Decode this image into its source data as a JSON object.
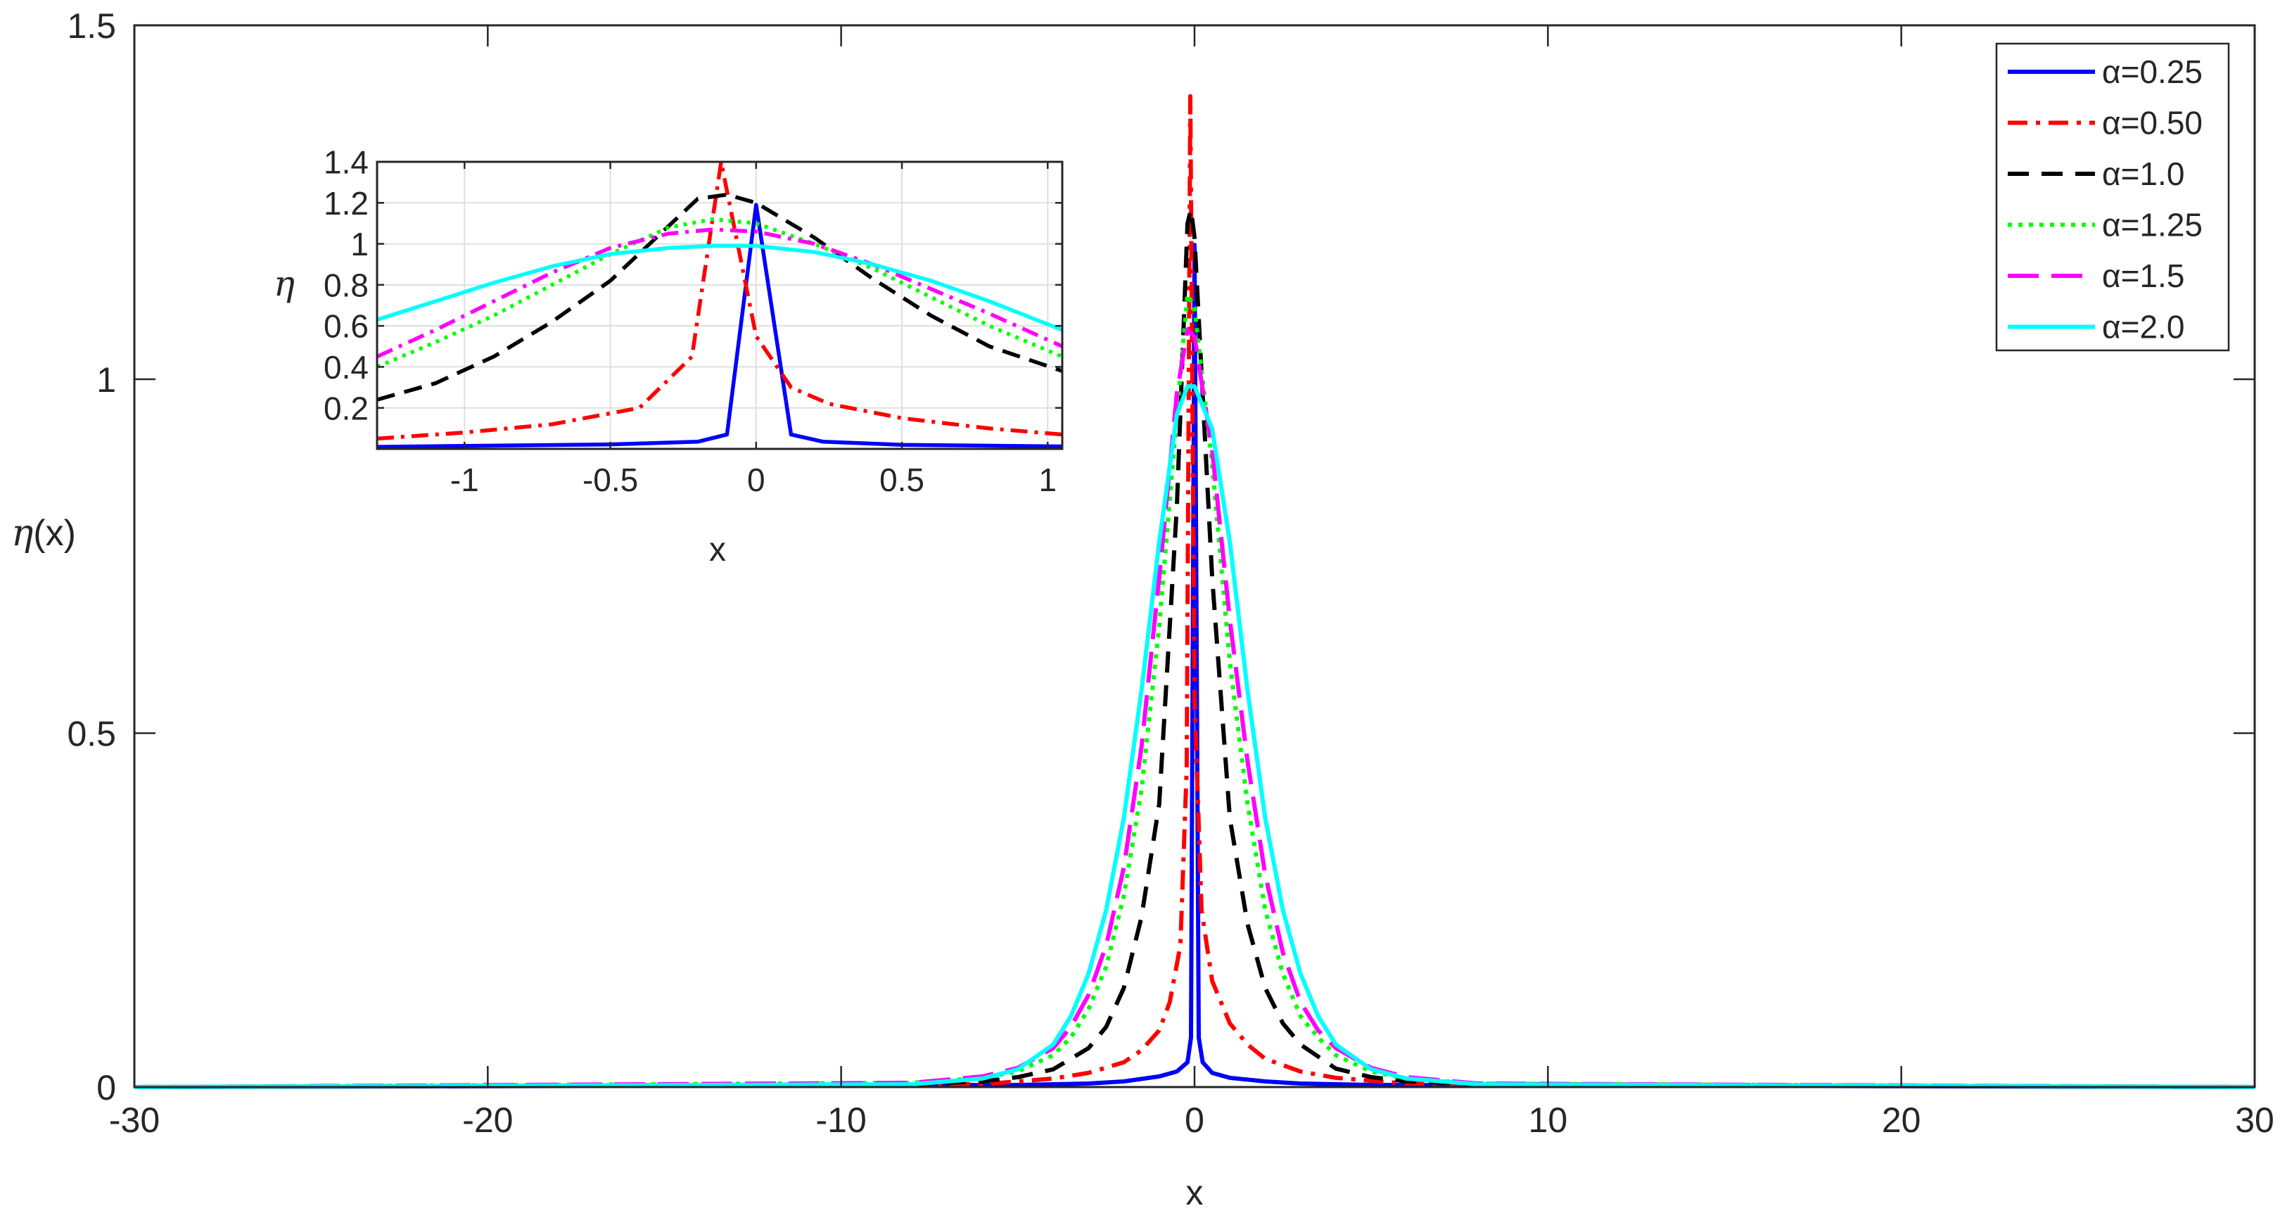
{
  "chart_data": [
    {
      "type": "line",
      "xlabel": "x",
      "ylabel_symbol": "η",
      "ylabel_suffix": "(x)",
      "xlim": [
        -30,
        30
      ],
      "ylim": [
        0,
        1.5
      ],
      "xticks": [
        -30,
        -20,
        -10,
        0,
        10,
        20,
        30
      ],
      "yticks": [
        0,
        0.5,
        1,
        1.5
      ],
      "xtick_labels": [
        "-30",
        "-20",
        "-10",
        "0",
        "10",
        "20",
        "30"
      ],
      "ytick_labels": [
        "0",
        "0.5",
        "1",
        "1.5"
      ],
      "grid": false,
      "legend_position": "top-right",
      "series": [
        {
          "name": "α=0.25",
          "color": "#0000ff",
          "dash": "solid",
          "x": [
            -30,
            -5,
            -3,
            -2,
            -1,
            -0.5,
            -0.2,
            -0.1,
            0,
            0.12,
            0.23,
            0.5,
            1,
            2,
            3,
            5,
            30
          ],
          "y": [
            0,
            0.003,
            0.005,
            0.008,
            0.015,
            0.022,
            0.035,
            0.07,
            1.19,
            0.07,
            0.035,
            0.02,
            0.013,
            0.008,
            0.005,
            0.003,
            0
          ]
        },
        {
          "name": "α=0.50",
          "color": "#ff0000",
          "dash": "dashdot",
          "x": [
            -30,
            -6,
            -4,
            -3,
            -2,
            -1.5,
            -1,
            -0.7,
            -0.4,
            -0.22,
            -0.12,
            0,
            0.2,
            0.5,
            1,
            1.5,
            2,
            3,
            4,
            6,
            30
          ],
          "y": [
            0,
            0.004,
            0.012,
            0.02,
            0.035,
            0.052,
            0.08,
            0.12,
            0.2,
            0.45,
            1.4,
            0.55,
            0.25,
            0.15,
            0.09,
            0.06,
            0.04,
            0.022,
            0.013,
            0.005,
            0
          ]
        },
        {
          "name": "α=1.0",
          "color": "#000000",
          "dash": "dashed",
          "x": [
            -30,
            -8,
            -6,
            -5,
            -4,
            -3,
            -2.5,
            -2,
            -1.5,
            -1,
            -0.5,
            -0.2,
            -0.1,
            0,
            0.5,
            1,
            1.5,
            2,
            2.5,
            3,
            4,
            5,
            6,
            8,
            30
          ],
          "y": [
            0,
            0.004,
            0.008,
            0.014,
            0.025,
            0.055,
            0.085,
            0.14,
            0.24,
            0.4,
            0.82,
            1.22,
            1.24,
            1.2,
            0.72,
            0.38,
            0.23,
            0.14,
            0.09,
            0.06,
            0.026,
            0.014,
            0.008,
            0.004,
            0
          ]
        },
        {
          "name": "α=1.25",
          "color": "#00ff00",
          "dash": "dotted",
          "x": [
            -30,
            -8,
            -6,
            -5,
            -4,
            -3.5,
            -3,
            -2.5,
            -2,
            -1.5,
            -1,
            -0.5,
            -0.2,
            0,
            0.5,
            1,
            1.5,
            2,
            2.5,
            3,
            3.5,
            4,
            5,
            6,
            8,
            30
          ],
          "y": [
            0,
            0.006,
            0.013,
            0.022,
            0.045,
            0.07,
            0.11,
            0.17,
            0.27,
            0.42,
            0.65,
            0.95,
            1.12,
            1.1,
            0.88,
            0.6,
            0.4,
            0.25,
            0.16,
            0.1,
            0.07,
            0.045,
            0.022,
            0.012,
            0.005,
            0
          ]
        },
        {
          "name": "α=1.5",
          "color": "#ff00ff",
          "dash": "longdash",
          "x": [
            -30,
            -8,
            -6,
            -5,
            -4,
            -3.5,
            -3,
            -2.5,
            -2,
            -1.5,
            -1,
            -0.5,
            -0.2,
            0,
            0.5,
            1,
            1.5,
            2,
            2.5,
            3,
            3.5,
            4,
            5,
            6,
            8,
            30
          ],
          "y": [
            0,
            0.006,
            0.015,
            0.027,
            0.055,
            0.085,
            0.13,
            0.2,
            0.31,
            0.48,
            0.72,
            0.98,
            1.07,
            1.06,
            0.9,
            0.66,
            0.46,
            0.3,
            0.19,
            0.12,
            0.08,
            0.055,
            0.027,
            0.014,
            0.005,
            0
          ]
        },
        {
          "name": "α=2.0",
          "color": "#00ffff",
          "dash": "solid",
          "x": [
            -30,
            -8,
            -6,
            -5,
            -4,
            -3.5,
            -3,
            -2.5,
            -2,
            -1.5,
            -1,
            -0.5,
            -0.2,
            0,
            0.5,
            1,
            1.5,
            2,
            2.5,
            3,
            3.5,
            4,
            5,
            6,
            8,
            30
          ],
          "y": [
            0,
            0.004,
            0.012,
            0.025,
            0.06,
            0.1,
            0.16,
            0.25,
            0.38,
            0.56,
            0.77,
            0.95,
            0.99,
            0.99,
            0.93,
            0.77,
            0.56,
            0.38,
            0.25,
            0.16,
            0.1,
            0.06,
            0.025,
            0.012,
            0.004,
            0
          ]
        }
      ]
    },
    {
      "type": "line",
      "role": "inset",
      "xlabel": "x",
      "ylabel_symbol": "η",
      "xlim": [
        -1.3,
        1.05
      ],
      "ylim": [
        0,
        1.4
      ],
      "xticks": [
        -1,
        -0.5,
        0,
        0.5,
        1
      ],
      "yticks": [
        0.2,
        0.4,
        0.6,
        0.8,
        1,
        1.2,
        1.4
      ],
      "xtick_labels": [
        "-1",
        "-0.5",
        "0",
        "0.5",
        "1"
      ],
      "ytick_labels": [
        "0.2",
        "0.4",
        "0.6",
        "0.8",
        "1",
        "1.2",
        "1.4"
      ],
      "grid": true,
      "series": [
        {
          "name": "α=0.25",
          "color": "#0000ff",
          "dash": "solid",
          "x": [
            -1.3,
            -0.5,
            -0.2,
            -0.1,
            0,
            0.12,
            0.23,
            0.5,
            1.05
          ],
          "y": [
            0.01,
            0.022,
            0.035,
            0.07,
            1.19,
            0.07,
            0.035,
            0.02,
            0.012
          ]
        },
        {
          "name": "α=0.50",
          "color": "#ff0000",
          "dash": "dashdot",
          "x": [
            -1.3,
            -1,
            -0.7,
            -0.4,
            -0.22,
            -0.12,
            0,
            0.12,
            0.25,
            0.5,
            0.8,
            1.05
          ],
          "y": [
            0.05,
            0.08,
            0.12,
            0.2,
            0.45,
            1.4,
            0.55,
            0.3,
            0.22,
            0.15,
            0.1,
            0.07
          ]
        },
        {
          "name": "α=1.0",
          "color": "#000000",
          "dash": "dashed",
          "x": [
            -1.3,
            -1.1,
            -0.9,
            -0.7,
            -0.5,
            -0.35,
            -0.2,
            -0.1,
            0,
            0.2,
            0.4,
            0.6,
            0.8,
            1.05
          ],
          "y": [
            0.24,
            0.32,
            0.45,
            0.62,
            0.82,
            1.02,
            1.22,
            1.24,
            1.2,
            1.03,
            0.83,
            0.65,
            0.5,
            0.38
          ]
        },
        {
          "name": "α=1.25",
          "color": "#00ff00",
          "dash": "dotted",
          "x": [
            -1.3,
            -1.1,
            -0.9,
            -0.7,
            -0.5,
            -0.3,
            -0.15,
            0,
            0.2,
            0.4,
            0.6,
            0.8,
            1.05
          ],
          "y": [
            0.4,
            0.52,
            0.65,
            0.8,
            0.95,
            1.08,
            1.12,
            1.1,
            1.0,
            0.88,
            0.74,
            0.6,
            0.45
          ]
        },
        {
          "name": "α=1.5",
          "color": "#ff00ff",
          "dash": "dashdot",
          "x": [
            -1.3,
            -1.1,
            -0.9,
            -0.7,
            -0.5,
            -0.3,
            -0.15,
            0,
            0.2,
            0.4,
            0.6,
            0.8,
            1.05
          ],
          "y": [
            0.45,
            0.58,
            0.72,
            0.86,
            0.98,
            1.05,
            1.07,
            1.06,
            1.0,
            0.9,
            0.78,
            0.66,
            0.5
          ]
        },
        {
          "name": "α=2.0",
          "color": "#00ffff",
          "dash": "solid",
          "x": [
            -1.3,
            -1.1,
            -0.9,
            -0.7,
            -0.5,
            -0.3,
            -0.15,
            0,
            0.2,
            0.4,
            0.6,
            0.8,
            1.05
          ],
          "y": [
            0.63,
            0.72,
            0.81,
            0.89,
            0.95,
            0.98,
            0.99,
            0.99,
            0.96,
            0.9,
            0.82,
            0.72,
            0.58
          ]
        }
      ]
    }
  ]
}
